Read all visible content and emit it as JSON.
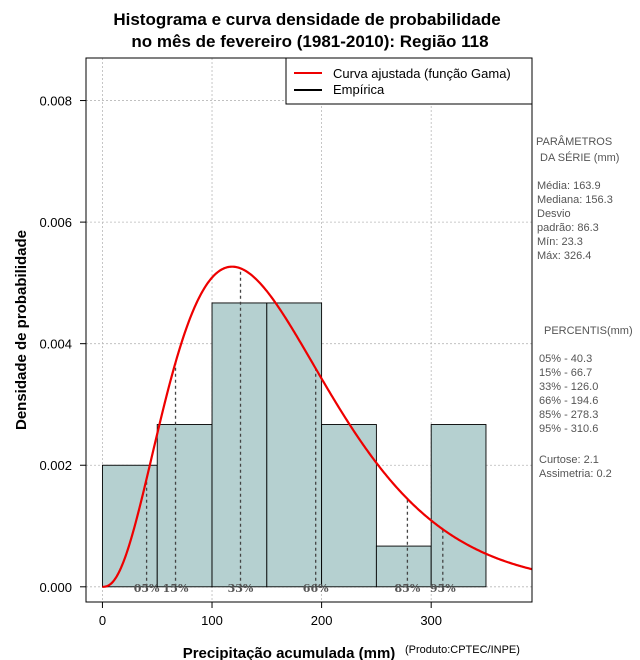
{
  "chart_data": {
    "type": "histogram",
    "title_line1": "Histograma e curva densidade de probabilidade",
    "title_line2": "no mês de fevereiro (1981-2010): Região 118",
    "xlabel": "Precipitação acumulada (mm)",
    "ylabel": "Densidade de probabilidade",
    "credit": "(Produto:CPTEC/INPE)",
    "xlim": [
      -15,
      392
    ],
    "ylim": [
      -0.00025,
      0.0087
    ],
    "x_ticks": [
      0,
      100,
      200,
      300
    ],
    "x_tick_labels": [
      "0",
      "100",
      "200",
      "300"
    ],
    "y_ticks": [
      0.0,
      0.002,
      0.004,
      0.006,
      0.008
    ],
    "y_tick_labels": [
      "0.000",
      "0.002",
      "0.004",
      "0.006",
      "0.008"
    ],
    "grid": true,
    "bar_color": "#b5d0d0",
    "curve_color": "#ee0000",
    "bins": [
      {
        "x0": 0,
        "x1": 50,
        "density": 0.002
      },
      {
        "x0": 50,
        "x1": 100,
        "density": 0.00267
      },
      {
        "x0": 100,
        "x1": 150,
        "density": 0.00467
      },
      {
        "x0": 150,
        "x1": 200,
        "density": 0.00467
      },
      {
        "x0": 200,
        "x1": 250,
        "density": 0.00267
      },
      {
        "x0": 250,
        "x1": 300,
        "density": 0.00067
      },
      {
        "x0": 300,
        "x1": 350,
        "density": 0.00267
      }
    ],
    "gamma_fit": {
      "shape": 3.6,
      "scale": 45.5
    },
    "percentile_lines": [
      {
        "label": "05%",
        "x": 40.3
      },
      {
        "label": "15%",
        "x": 66.7
      },
      {
        "label": "33%",
        "x": 126.0
      },
      {
        "label": "66%",
        "x": 194.6
      },
      {
        "label": "85%",
        "x": 278.3
      },
      {
        "label": "95%",
        "x": 310.6
      }
    ],
    "legend": {
      "position": "top-right",
      "items": [
        {
          "label": "Curva ajustada (função Gama)",
          "color": "#ee0000"
        },
        {
          "label": "Empírica",
          "color": "#000000"
        }
      ]
    }
  },
  "side_panel": {
    "params_title_1": "PARÂMETROS",
    "params_title_2": "DA SÉRIE (mm)",
    "stats": [
      "Média:  163.9",
      "Mediana:  156.3",
      "Desvio",
      "padrão:  86.3",
      "Mín:  23.3",
      "Máx:  326.4"
    ],
    "percentis_title": "PERCENTIS(mm)",
    "percentis": [
      "05% -   40.3",
      "15% -   66.7",
      "33% -  126.0",
      "66% -  194.6",
      "85% -  278.3",
      "95% -  310.6"
    ],
    "moments": [
      "Curtose:  2.1",
      "Assimetria:  0.2"
    ]
  }
}
